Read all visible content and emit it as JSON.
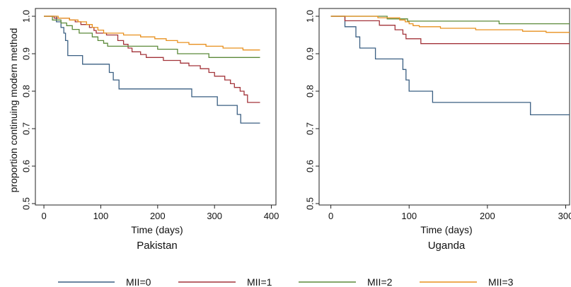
{
  "chart_data": {
    "type": "line",
    "step": true,
    "ylabel": "proportion continuing modern method",
    "xlabel": "Time (days)",
    "ylim": [
      0.5,
      1.0
    ],
    "y_ticks": [
      0.5,
      0.6,
      0.7,
      0.8,
      0.9,
      1.0
    ],
    "y_tick_labels": [
      "0.5",
      "0.6",
      "0.7",
      "0.8",
      "0.9",
      "1.0"
    ],
    "grid": false,
    "legend_position": "bottom",
    "legend": [
      {
        "label": "MII=0",
        "color": "#3a5f82"
      },
      {
        "label": "MII=1",
        "color": "#a3343a"
      },
      {
        "label": "MII=2",
        "color": "#5c8a3a"
      },
      {
        "label": "MII=3",
        "color": "#e8901e"
      }
    ],
    "panels": [
      {
        "title": "Pakistan",
        "xlim": [
          -15,
          408
        ],
        "x_ticks": [
          0,
          100,
          200,
          300,
          400
        ],
        "x_tick_labels": [
          "0",
          "100",
          "200",
          "300",
          "400"
        ],
        "series": [
          {
            "name": "MII=0",
            "points": [
              [
                0,
                1.0
              ],
              [
                22,
                1.0
              ],
              [
                22,
                0.985
              ],
              [
                30,
                0.985
              ],
              [
                30,
                0.97
              ],
              [
                35,
                0.97
              ],
              [
                35,
                0.955
              ],
              [
                38,
                0.955
              ],
              [
                38,
                0.935
              ],
              [
                42,
                0.935
              ],
              [
                42,
                0.895
              ],
              [
                68,
                0.895
              ],
              [
                68,
                0.872
              ],
              [
                115,
                0.872
              ],
              [
                115,
                0.85
              ],
              [
                122,
                0.85
              ],
              [
                122,
                0.83
              ],
              [
                132,
                0.83
              ],
              [
                132,
                0.806
              ],
              [
                260,
                0.806
              ],
              [
                260,
                0.785
              ],
              [
                305,
                0.785
              ],
              [
                305,
                0.762
              ],
              [
                340,
                0.762
              ],
              [
                340,
                0.738
              ],
              [
                346,
                0.738
              ],
              [
                346,
                0.715
              ],
              [
                380,
                0.715
              ]
            ]
          },
          {
            "name": "MII=1",
            "points": [
              [
                0,
                1.0
              ],
              [
                18,
                1.0
              ],
              [
                18,
                0.995
              ],
              [
                45,
                0.995
              ],
              [
                45,
                0.99
              ],
              [
                55,
                0.99
              ],
              [
                55,
                0.985
              ],
              [
                65,
                0.985
              ],
              [
                65,
                0.978
              ],
              [
                80,
                0.978
              ],
              [
                80,
                0.97
              ],
              [
                88,
                0.97
              ],
              [
                88,
                0.962
              ],
              [
                92,
                0.962
              ],
              [
                92,
                0.955
              ],
              [
                110,
                0.955
              ],
              [
                110,
                0.95
              ],
              [
                130,
                0.95
              ],
              [
                130,
                0.935
              ],
              [
                140,
                0.935
              ],
              [
                140,
                0.925
              ],
              [
                148,
                0.925
              ],
              [
                148,
                0.915
              ],
              [
                155,
                0.915
              ],
              [
                155,
                0.905
              ],
              [
                170,
                0.905
              ],
              [
                170,
                0.898
              ],
              [
                180,
                0.898
              ],
              [
                180,
                0.89
              ],
              [
                210,
                0.89
              ],
              [
                210,
                0.882
              ],
              [
                240,
                0.882
              ],
              [
                240,
                0.875
              ],
              [
                255,
                0.875
              ],
              [
                255,
                0.868
              ],
              [
                275,
                0.868
              ],
              [
                275,
                0.86
              ],
              [
                290,
                0.86
              ],
              [
                290,
                0.85
              ],
              [
                300,
                0.85
              ],
              [
                300,
                0.84
              ],
              [
                318,
                0.84
              ],
              [
                318,
                0.83
              ],
              [
                328,
                0.83
              ],
              [
                328,
                0.82
              ],
              [
                335,
                0.82
              ],
              [
                335,
                0.81
              ],
              [
                345,
                0.81
              ],
              [
                345,
                0.8
              ],
              [
                352,
                0.8
              ],
              [
                352,
                0.79
              ],
              [
                358,
                0.79
              ],
              [
                358,
                0.77
              ],
              [
                380,
                0.77
              ]
            ]
          },
          {
            "name": "MII=2",
            "points": [
              [
                0,
                1.0
              ],
              [
                15,
                1.0
              ],
              [
                15,
                0.99
              ],
              [
                30,
                0.99
              ],
              [
                30,
                0.982
              ],
              [
                40,
                0.982
              ],
              [
                40,
                0.975
              ],
              [
                50,
                0.975
              ],
              [
                50,
                0.965
              ],
              [
                62,
                0.965
              ],
              [
                62,
                0.955
              ],
              [
                85,
                0.955
              ],
              [
                85,
                0.945
              ],
              [
                95,
                0.945
              ],
              [
                95,
                0.935
              ],
              [
                105,
                0.935
              ],
              [
                105,
                0.928
              ],
              [
                112,
                0.928
              ],
              [
                112,
                0.92
              ],
              [
                200,
                0.92
              ],
              [
                200,
                0.912
              ],
              [
                235,
                0.912
              ],
              [
                235,
                0.9
              ],
              [
                290,
                0.9
              ],
              [
                290,
                0.89
              ],
              [
                380,
                0.89
              ]
            ]
          },
          {
            "name": "MII=3",
            "points": [
              [
                0,
                1.0
              ],
              [
                25,
                1.0
              ],
              [
                25,
                0.995
              ],
              [
                45,
                0.995
              ],
              [
                45,
                0.99
              ],
              [
                60,
                0.99
              ],
              [
                60,
                0.985
              ],
              [
                75,
                0.985
              ],
              [
                75,
                0.978
              ],
              [
                85,
                0.978
              ],
              [
                85,
                0.97
              ],
              [
                95,
                0.97
              ],
              [
                95,
                0.963
              ],
              [
                105,
                0.963
              ],
              [
                105,
                0.955
              ],
              [
                140,
                0.955
              ],
              [
                140,
                0.95
              ],
              [
                170,
                0.95
              ],
              [
                170,
                0.945
              ],
              [
                195,
                0.945
              ],
              [
                195,
                0.94
              ],
              [
                215,
                0.94
              ],
              [
                215,
                0.935
              ],
              [
                235,
                0.935
              ],
              [
                235,
                0.93
              ],
              [
                255,
                0.93
              ],
              [
                255,
                0.925
              ],
              [
                285,
                0.925
              ],
              [
                285,
                0.92
              ],
              [
                315,
                0.92
              ],
              [
                315,
                0.915
              ],
              [
                350,
                0.915
              ],
              [
                350,
                0.91
              ],
              [
                380,
                0.91
              ]
            ]
          }
        ]
      },
      {
        "title": "Uganda",
        "xlim": [
          -15,
          305
        ],
        "x_ticks": [
          0,
          100,
          200,
          300
        ],
        "x_tick_labels": [
          "0",
          "100",
          "200",
          "300"
        ],
        "series": [
          {
            "name": "MII=0",
            "points": [
              [
                0,
                1.0
              ],
              [
                18,
                1.0
              ],
              [
                18,
                0.972
              ],
              [
                32,
                0.972
              ],
              [
                32,
                0.945
              ],
              [
                37,
                0.945
              ],
              [
                37,
                0.915
              ],
              [
                57,
                0.915
              ],
              [
                57,
                0.886
              ],
              [
                92,
                0.886
              ],
              [
                92,
                0.858
              ],
              [
                96,
                0.858
              ],
              [
                96,
                0.83
              ],
              [
                100,
                0.83
              ],
              [
                100,
                0.8
              ],
              [
                130,
                0.8
              ],
              [
                130,
                0.77
              ],
              [
                255,
                0.77
              ],
              [
                255,
                0.737
              ],
              [
                305,
                0.737
              ]
            ]
          },
          {
            "name": "MII=1",
            "points": [
              [
                0,
                1.0
              ],
              [
                18,
                1.0
              ],
              [
                18,
                0.988
              ],
              [
                62,
                0.988
              ],
              [
                62,
                0.976
              ],
              [
                82,
                0.976
              ],
              [
                82,
                0.964
              ],
              [
                92,
                0.964
              ],
              [
                92,
                0.952
              ],
              [
                96,
                0.952
              ],
              [
                96,
                0.94
              ],
              [
                115,
                0.94
              ],
              [
                115,
                0.927
              ],
              [
                305,
                0.927
              ]
            ]
          },
          {
            "name": "MII=2",
            "points": [
              [
                0,
                1.0
              ],
              [
                72,
                1.0
              ],
              [
                72,
                0.993
              ],
              [
                98,
                0.993
              ],
              [
                98,
                0.987
              ],
              [
                215,
                0.987
              ],
              [
                215,
                0.98
              ],
              [
                305,
                0.98
              ]
            ]
          },
          {
            "name": "MII=3",
            "points": [
              [
                0,
                1.0
              ],
              [
                60,
                1.0
              ],
              [
                60,
                0.996
              ],
              [
                88,
                0.996
              ],
              [
                88,
                0.99
              ],
              [
                95,
                0.99
              ],
              [
                95,
                0.985
              ],
              [
                100,
                0.985
              ],
              [
                100,
                0.98
              ],
              [
                105,
                0.98
              ],
              [
                105,
                0.975
              ],
              [
                113,
                0.975
              ],
              [
                113,
                0.972
              ],
              [
                140,
                0.972
              ],
              [
                140,
                0.968
              ],
              [
                185,
                0.968
              ],
              [
                185,
                0.964
              ],
              [
                245,
                0.964
              ],
              [
                245,
                0.96
              ],
              [
                275,
                0.96
              ],
              [
                275,
                0.957
              ],
              [
                305,
                0.957
              ]
            ]
          }
        ]
      }
    ]
  }
}
